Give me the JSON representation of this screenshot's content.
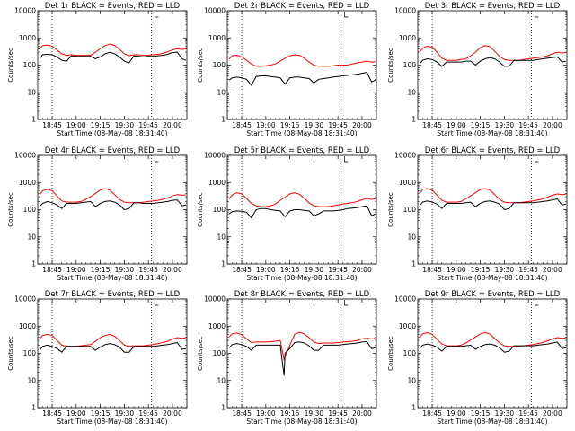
{
  "chart_data": {
    "type": "line",
    "grid": false,
    "y_scale": "log",
    "ylim": [
      1,
      10000
    ],
    "y_ticks": [
      "1",
      "10",
      "100",
      "1000",
      "10000"
    ],
    "x_ticks": [
      "18:45",
      "19:00",
      "19:15",
      "19:30",
      "19:45",
      "20:00"
    ],
    "x_range_minutes": [
      18.6,
      20.15
    ],
    "series_colors": {
      "events": "#000000",
      "lld": "#ff0000"
    },
    "dashed_markers": [
      18.75,
      19.78
    ],
    "panels": [
      {
        "title": "Det 1r BLACK = Events, RED = LLD",
        "ylabel": "Counts/sec",
        "xlabel": "Start Time (08-May-08 18:31:40)",
        "x": [
          18.62,
          18.65,
          18.7,
          18.75,
          18.8,
          18.85,
          18.9,
          18.95,
          19.0,
          19.05,
          19.1,
          19.15,
          19.2,
          19.25,
          19.3,
          19.35,
          19.4,
          19.45,
          19.5,
          19.55,
          19.6,
          19.65,
          19.7,
          19.75,
          19.8,
          19.85,
          19.9,
          19.95,
          20.0,
          20.05,
          20.1,
          20.14
        ],
        "events": [
          170,
          240,
          250,
          240,
          200,
          150,
          140,
          220,
          210,
          210,
          210,
          210,
          170,
          200,
          260,
          300,
          260,
          200,
          140,
          120,
          220,
          210,
          200,
          210,
          210,
          220,
          230,
          250,
          290,
          300,
          170,
          150
        ],
        "lld": [
          400,
          520,
          540,
          490,
          360,
          260,
          230,
          240,
          230,
          230,
          230,
          230,
          300,
          400,
          520,
          600,
          530,
          380,
          260,
          220,
          240,
          240,
          230,
          230,
          240,
          250,
          270,
          310,
          360,
          400,
          380,
          390
        ]
      },
      {
        "title": "Det 2r BLACK = Events, RED = LLD",
        "ylabel": "Counts/sec",
        "xlabel": "Start Time (08-May-08 18:31:40)",
        "x": [
          18.62,
          18.65,
          18.7,
          18.75,
          18.8,
          18.85,
          18.9,
          18.95,
          19.0,
          19.05,
          19.1,
          19.15,
          19.2,
          19.25,
          19.3,
          19.35,
          19.4,
          19.45,
          19.5,
          19.55,
          19.6,
          19.65,
          19.7,
          19.75,
          19.8,
          19.85,
          19.9,
          19.95,
          20.0,
          20.05,
          20.1,
          20.14
        ],
        "events": [
          28,
          34,
          36,
          34,
          30,
          18,
          38,
          40,
          40,
          38,
          36,
          34,
          20,
          34,
          36,
          36,
          34,
          32,
          22,
          30,
          32,
          34,
          36,
          38,
          40,
          42,
          44,
          46,
          50,
          54,
          24,
          28
        ],
        "lld": [
          170,
          220,
          230,
          200,
          150,
          110,
          90,
          90,
          95,
          100,
          110,
          140,
          180,
          220,
          240,
          230,
          180,
          130,
          100,
          90,
          90,
          90,
          95,
          100,
          100,
          100,
          110,
          120,
          130,
          140,
          130,
          135
        ]
      },
      {
        "title": "Det 3r BLACK = Events, RED = LLD",
        "ylabel": "Counts/sec",
        "xlabel": "Start Time (08-May-08 18:31:40)",
        "x": [
          18.62,
          18.65,
          18.7,
          18.75,
          18.8,
          18.85,
          18.9,
          18.95,
          19.0,
          19.05,
          19.1,
          19.15,
          19.2,
          19.25,
          19.3,
          19.35,
          19.4,
          19.45,
          19.5,
          19.55,
          19.6,
          19.65,
          19.7,
          19.75,
          19.8,
          19.85,
          19.9,
          19.95,
          20.0,
          20.05,
          20.1,
          20.14
        ],
        "events": [
          110,
          150,
          170,
          160,
          130,
          90,
          130,
          130,
          130,
          130,
          140,
          140,
          100,
          140,
          170,
          190,
          170,
          130,
          90,
          90,
          150,
          150,
          150,
          150,
          150,
          160,
          170,
          180,
          190,
          200,
          130,
          140
        ],
        "lld": [
          300,
          420,
          500,
          460,
          300,
          180,
          150,
          150,
          150,
          160,
          170,
          220,
          300,
          440,
          520,
          480,
          320,
          210,
          160,
          150,
          150,
          150,
          160,
          170,
          180,
          190,
          200,
          220,
          260,
          300,
          280,
          290
        ]
      },
      {
        "title": "Det 4r BLACK = Events, RED = LLD",
        "ylabel": "Counts/sec",
        "xlabel": "Start Time (08-May-08 18:31:40)",
        "x": [
          18.62,
          18.65,
          18.7,
          18.75,
          18.8,
          18.85,
          18.9,
          18.95,
          19.0,
          19.05,
          19.1,
          19.15,
          19.2,
          19.25,
          19.3,
          19.35,
          19.4,
          19.45,
          19.5,
          19.55,
          19.6,
          19.65,
          19.7,
          19.75,
          19.8,
          19.85,
          19.9,
          19.95,
          20.0,
          20.05,
          20.1,
          20.14
        ],
        "events": [
          130,
          170,
          200,
          180,
          150,
          110,
          170,
          170,
          170,
          180,
          190,
          200,
          130,
          170,
          200,
          210,
          190,
          150,
          100,
          110,
          180,
          180,
          170,
          170,
          170,
          180,
          190,
          200,
          220,
          230,
          140,
          150
        ],
        "lld": [
          350,
          500,
          560,
          500,
          320,
          210,
          190,
          190,
          190,
          200,
          240,
          300,
          400,
          530,
          600,
          520,
          360,
          240,
          190,
          180,
          180,
          180,
          190,
          200,
          210,
          220,
          240,
          270,
          320,
          360,
          340,
          350
        ]
      },
      {
        "title": "Det 5r BLACK = Events, RED = LLD",
        "ylabel": "Counts/sec",
        "xlabel": "Start Time (08-May-08 18:31:40)",
        "x": [
          18.62,
          18.65,
          18.7,
          18.75,
          18.8,
          18.85,
          18.9,
          18.95,
          19.0,
          19.05,
          19.1,
          19.15,
          19.2,
          19.25,
          19.3,
          19.35,
          19.4,
          19.45,
          19.5,
          19.55,
          19.6,
          19.65,
          19.7,
          19.75,
          19.8,
          19.85,
          19.9,
          19.95,
          20.0,
          20.05,
          20.1,
          20.14
        ],
        "events": [
          70,
          85,
          90,
          88,
          80,
          50,
          100,
          110,
          110,
          100,
          95,
          90,
          55,
          90,
          100,
          100,
          95,
          90,
          60,
          70,
          90,
          90,
          90,
          95,
          100,
          110,
          115,
          120,
          130,
          140,
          60,
          70
        ],
        "lld": [
          250,
          350,
          420,
          380,
          260,
          170,
          140,
          130,
          130,
          140,
          160,
          220,
          290,
          380,
          420,
          370,
          260,
          180,
          140,
          130,
          130,
          130,
          140,
          150,
          160,
          170,
          180,
          200,
          230,
          260,
          240,
          250
        ]
      },
      {
        "title": "Det 6r BLACK = Events, RED = LLD",
        "ylabel": "Counts/sec",
        "xlabel": "Start Time (08-May-08 18:31:40)",
        "x": [
          18.62,
          18.65,
          18.7,
          18.75,
          18.8,
          18.85,
          18.9,
          18.95,
          19.0,
          19.05,
          19.1,
          19.15,
          19.2,
          19.25,
          19.3,
          19.35,
          19.4,
          19.45,
          19.5,
          19.55,
          19.6,
          19.65,
          19.7,
          19.75,
          19.8,
          19.85,
          19.9,
          19.95,
          20.0,
          20.05,
          20.1,
          20.14
        ],
        "events": [
          140,
          190,
          210,
          190,
          160,
          110,
          170,
          170,
          170,
          170,
          180,
          190,
          130,
          170,
          200,
          210,
          190,
          160,
          100,
          110,
          180,
          180,
          180,
          180,
          180,
          190,
          200,
          210,
          230,
          250,
          150,
          160
        ],
        "lld": [
          400,
          560,
          600,
          520,
          340,
          220,
          190,
          190,
          190,
          200,
          250,
          320,
          420,
          550,
          600,
          530,
          360,
          240,
          190,
          180,
          180,
          180,
          190,
          200,
          210,
          230,
          250,
          290,
          340,
          380,
          360,
          370
        ]
      },
      {
        "title": "Det 7r BLACK = Events, RED = LLD",
        "ylabel": "Counts/sec",
        "xlabel": "Start Time (08-May-08 18:31:40)",
        "x": [
          18.62,
          18.65,
          18.7,
          18.75,
          18.8,
          18.85,
          18.9,
          18.95,
          19.0,
          19.05,
          19.1,
          19.15,
          19.2,
          19.25,
          19.3,
          19.35,
          19.4,
          19.45,
          19.5,
          19.55,
          19.6,
          19.65,
          19.7,
          19.75,
          19.8,
          19.85,
          19.9,
          19.95,
          20.0,
          20.05,
          20.1,
          20.14
        ],
        "events": [
          130,
          180,
          200,
          180,
          150,
          110,
          180,
          180,
          180,
          180,
          180,
          180,
          130,
          170,
          210,
          230,
          210,
          170,
          110,
          110,
          180,
          180,
          180,
          180,
          180,
          190,
          200,
          210,
          230,
          250,
          140,
          150
        ],
        "lld": [
          330,
          450,
          500,
          450,
          300,
          200,
          180,
          180,
          180,
          190,
          200,
          210,
          280,
          380,
          450,
          500,
          420,
          300,
          200,
          180,
          190,
          190,
          190,
          200,
          210,
          230,
          250,
          280,
          330,
          380,
          360,
          370
        ]
      },
      {
        "title": "Det 8r BLACK = Events, RED = LLD",
        "ylabel": "Counts/sec",
        "xlabel": "Start Time (08-May-08 18:31:40)",
        "x": [
          18.62,
          18.65,
          18.7,
          18.75,
          18.8,
          18.85,
          18.9,
          18.95,
          19.0,
          19.05,
          19.1,
          19.15,
          19.19,
          19.2,
          19.22,
          19.25,
          19.3,
          19.35,
          19.4,
          19.45,
          19.5,
          19.55,
          19.6,
          19.65,
          19.7,
          19.75,
          19.8,
          19.85,
          19.9,
          19.95,
          20.0,
          20.05,
          20.1,
          20.14
        ],
        "events": [
          160,
          210,
          230,
          210,
          180,
          130,
          200,
          200,
          200,
          200,
          200,
          200,
          15,
          100,
          120,
          150,
          250,
          260,
          240,
          190,
          130,
          130,
          200,
          200,
          200,
          200,
          210,
          220,
          230,
          240,
          260,
          270,
          150,
          160
        ],
        "lld": [
          400,
          520,
          560,
          480,
          340,
          250,
          260,
          260,
          260,
          270,
          280,
          300,
          60,
          75,
          110,
          200,
          500,
          600,
          520,
          380,
          260,
          230,
          240,
          240,
          240,
          250,
          260,
          270,
          280,
          300,
          340,
          360,
          340,
          350
        ]
      },
      {
        "title": "Det 9r BLACK = Events, RED = LLD",
        "ylabel": "Counts/sec",
        "xlabel": "Start Time (08-May-08 18:31:40)",
        "x": [
          18.62,
          18.65,
          18.7,
          18.75,
          18.8,
          18.85,
          18.9,
          18.95,
          19.0,
          19.05,
          19.1,
          19.15,
          19.2,
          19.25,
          19.3,
          19.35,
          19.4,
          19.45,
          19.5,
          19.55,
          19.6,
          19.65,
          19.7,
          19.75,
          19.8,
          19.85,
          19.9,
          19.95,
          20.0,
          20.05,
          20.1,
          20.14
        ],
        "events": [
          150,
          200,
          220,
          200,
          170,
          120,
          180,
          180,
          180,
          180,
          190,
          200,
          140,
          180,
          210,
          220,
          200,
          160,
          110,
          120,
          190,
          190,
          190,
          190,
          190,
          200,
          210,
          220,
          240,
          260,
          150,
          160
        ],
        "lld": [
          380,
          520,
          580,
          500,
          330,
          220,
          190,
          190,
          190,
          200,
          240,
          310,
          400,
          520,
          580,
          510,
          350,
          240,
          190,
          180,
          180,
          180,
          190,
          200,
          210,
          230,
          250,
          290,
          340,
          380,
          360,
          370
        ]
      }
    ]
  }
}
